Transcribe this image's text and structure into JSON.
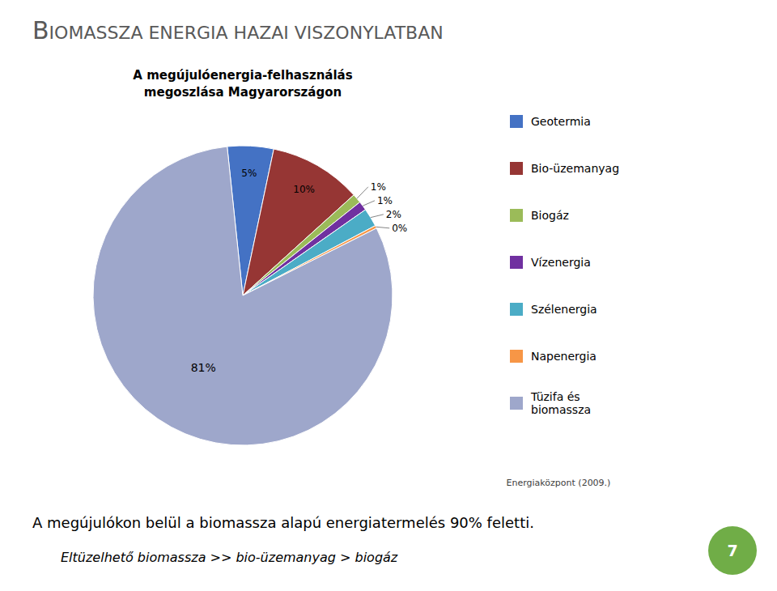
{
  "chart_data": {
    "type": "pie",
    "title": "A megújulóenergia-felhasználás\nmegoszlása Magyarországon",
    "categories": [
      "Geotermia",
      "Bio-üzemanyag",
      "Biogáz",
      "Vízenergia",
      "Szélenergia",
      "Napenergia",
      "Tüzifa és\nbiomassza"
    ],
    "values": [
      5,
      10,
      1,
      1,
      2,
      0.3,
      81
    ],
    "value_labels": [
      "5%",
      "10%",
      "1%",
      "1%",
      "2%",
      "0%",
      "81%"
    ],
    "colors": [
      "#4472C4",
      "#963634",
      "#9BBB59",
      "#7030A0",
      "#4BACC6",
      "#F79646",
      "#9EA7CB"
    ],
    "data_labels": true,
    "legend": "right",
    "annotations": [
      "BIOMASSZA ENERGIA HAZAI VISZONYLATBAN",
      "Energiaközpont (2009.)",
      "A megújulókon belül a biomassza alapú energiatermelés 90% feletti.",
      "Eltüzelhető biomassza >> bio-üzemanyag > biogáz",
      "7"
    ]
  }
}
